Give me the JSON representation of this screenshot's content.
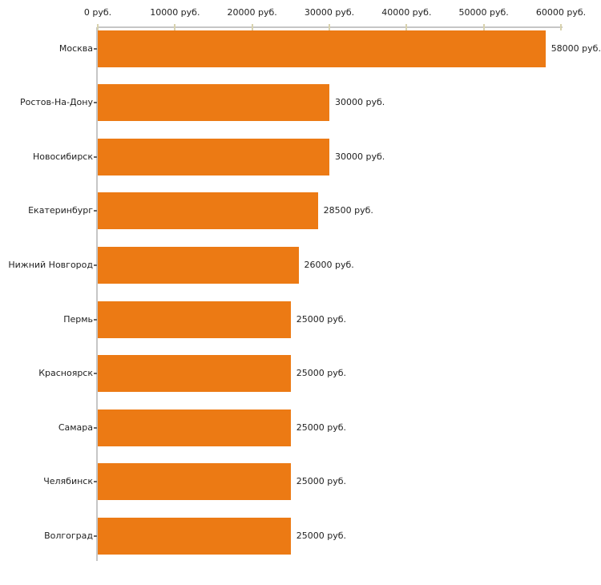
{
  "chart_data": {
    "type": "bar",
    "orientation": "horizontal",
    "title": "",
    "xlabel": "",
    "ylabel": "",
    "unit": "руб.",
    "categories": [
      "Москва",
      "Ростов-На-Дону",
      "Новосибирск",
      "Екатеринбург",
      "Нижний Новгород",
      "Пермь",
      "Красноярск",
      "Самара",
      "Челябинск",
      "Волгоград"
    ],
    "values": [
      58000,
      30000,
      30000,
      28500,
      26000,
      25000,
      25000,
      25000,
      25000,
      25000
    ],
    "value_labels": [
      "58000 руб.",
      "30000 руб.",
      "30000 руб.",
      "28500 руб.",
      "26000 руб.",
      "25000 руб.",
      "25000 руб.",
      "25000 руб.",
      "25000 руб.",
      "25000 руб."
    ],
    "xlim": [
      0,
      60000
    ],
    "x_tick_step": 10000,
    "x_tick_values": [
      0,
      10000,
      20000,
      30000,
      40000,
      50000,
      60000
    ],
    "x_tick_labels": [
      "0 руб.",
      "10000 руб.",
      "20000 руб.",
      "30000 руб.",
      "40000 руб.",
      "50000 руб.",
      "60000 руб."
    ],
    "grid": false,
    "legend": null,
    "axis_position": "top",
    "colors": {
      "bar": "#ec7a14",
      "axis_line": "#c6c6c6",
      "axis_tick": "#d8d2ae",
      "category_tick": "#666666",
      "text": "#222222",
      "background": "#ffffff"
    }
  }
}
